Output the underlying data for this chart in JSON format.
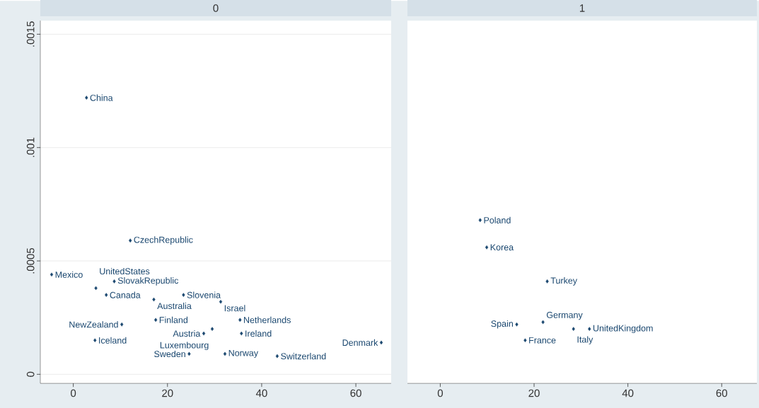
{
  "chart_data": [
    {
      "type": "scatter",
      "title": "0",
      "color": "#1a476f",
      "marker": "diamond",
      "grid": "y",
      "xlim": [
        -7,
        67.5
      ],
      "ylim": [
        -4e-05,
        0.00156
      ],
      "xticks": [
        0,
        20,
        40,
        60
      ],
      "yticks": [
        0,
        {
          "value": 0.0005,
          "label": ".0005"
        },
        {
          "value": 0.001,
          "label": ".001"
        },
        {
          "value": 0.0015,
          "label": ".0015"
        }
      ],
      "x": [
        2.8,
        12.1,
        -4.6,
        8.7,
        4.8,
        7.0,
        17.1,
        23.4,
        31.3,
        35.4,
        10.3,
        4.6,
        27.7,
        35.7,
        24.6,
        32.2,
        43.3,
        65.4,
        17.5,
        29.5
      ],
      "values": [
        0.00122,
        0.00059,
        0.00044,
        0.00041,
        0.00038,
        0.00035,
        0.00033,
        0.00035,
        0.00032,
        0.00024,
        0.00022,
        0.00015,
        0.00018,
        0.00018,
        9e-05,
        9e-05,
        8e-05,
        0.00014,
        0.00024,
        0.0002
      ],
      "annotations": [
        {
          "text": "China",
          "x": 2.8,
          "y": 0.00122
        },
        {
          "text": "CzechRepublic",
          "x": 12.1,
          "y": 0.00059
        },
        {
          "text": "Mexico",
          "x": -4.6,
          "y": 0.00044
        },
        {
          "text": "SlovakRepublic",
          "x": 8.7,
          "y": 0.00041
        },
        {
          "text": "UnitedStates",
          "x": 4.8,
          "y": 0.00038
        },
        {
          "text": "Canada",
          "x": 7.0,
          "y": 0.00035
        },
        {
          "text": "Australia",
          "x": 17.1,
          "y": 0.00033
        },
        {
          "text": "Slovenia",
          "x": 23.4,
          "y": 0.00035
        },
        {
          "text": "Israel",
          "x": 31.3,
          "y": 0.00032
        },
        {
          "text": "Netherlands",
          "x": 35.4,
          "y": 0.00024
        },
        {
          "text": "NewZealand",
          "x": 10.3,
          "y": 0.00022
        },
        {
          "text": "Iceland",
          "x": 4.6,
          "y": 0.00015
        },
        {
          "text": "Austria",
          "x": 27.7,
          "y": 0.00018
        },
        {
          "text": "Ireland",
          "x": 35.7,
          "y": 0.00018
        },
        {
          "text": "Sweden",
          "x": 24.6,
          "y": 9e-05
        },
        {
          "text": "Norway",
          "x": 32.2,
          "y": 9e-05
        },
        {
          "text": "Switzerland",
          "x": 43.3,
          "y": 8e-05
        },
        {
          "text": "Denmark",
          "x": 65.4,
          "y": 0.00014
        },
        {
          "text": "Finland",
          "x": 17.5,
          "y": 0.00024
        },
        {
          "text": "Luxembourg",
          "x": 29.5,
          "y": 0.0002
        }
      ]
    },
    {
      "type": "scatter",
      "title": "1",
      "color": "#1a476f",
      "marker": "diamond",
      "grid": "y",
      "tick_labels": "x",
      "xlim": [
        -7,
        67.5
      ],
      "ylim": [
        -4e-05,
        0.00156
      ],
      "xticks": [
        0,
        20,
        40,
        60
      ],
      "yticks": [
        0,
        0.0005,
        0.001,
        0.0015
      ],
      "x": [
        8.5,
        9.9,
        22.8,
        21.9,
        16.3,
        18.1,
        28.4,
        31.8
      ],
      "values": [
        0.00068,
        0.00056,
        0.00041,
        0.00023,
        0.00022,
        0.00015,
        0.0002,
        0.0002
      ],
      "annotations": [
        {
          "text": "Poland",
          "x": 8.5,
          "y": 0.00068
        },
        {
          "text": "Korea",
          "x": 9.9,
          "y": 0.00056
        },
        {
          "text": "Turkey",
          "x": 22.8,
          "y": 0.00041
        },
        {
          "text": "Germany",
          "x": 21.9,
          "y": 0.00023
        },
        {
          "text": "Spain",
          "x": 16.3,
          "y": 0.00022
        },
        {
          "text": "France",
          "x": 18.1,
          "y": 0.00015
        },
        {
          "text": "Italy",
          "x": 28.4,
          "y": 0.0002
        },
        {
          "text": "UnitedKingdom",
          "x": 31.8,
          "y": 0.0002
        }
      ]
    }
  ]
}
